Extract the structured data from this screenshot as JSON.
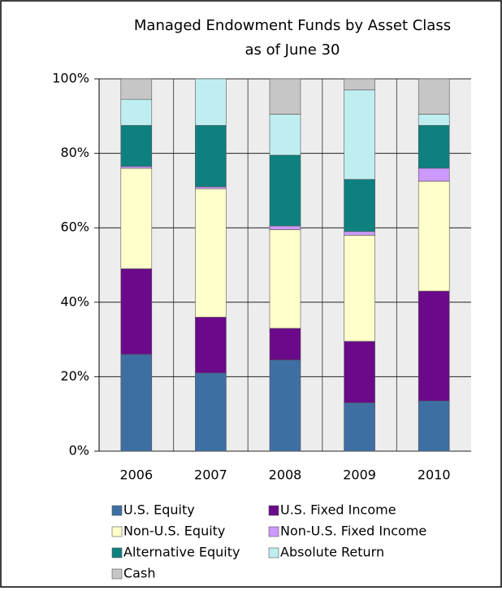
{
  "chart_data": {
    "type": "stacked-bar",
    "title": "Managed Endowment Funds by Asset Class",
    "subtitle": "as of June 30",
    "categories": [
      "2006",
      "2007",
      "2008",
      "2009",
      "2010"
    ],
    "ylim": [
      0,
      100
    ],
    "yticks": [
      {
        "value": 0,
        "label": "0%"
      },
      {
        "value": 20,
        "label": "20%"
      },
      {
        "value": 40,
        "label": "40%"
      },
      {
        "value": 60,
        "label": "60%"
      },
      {
        "value": 80,
        "label": "80%"
      },
      {
        "value": 100,
        "label": "100%"
      }
    ],
    "grid": true,
    "series": [
      {
        "name": "U.S. Equity",
        "color": "#3e6fa3",
        "values": [
          26,
          21,
          24.5,
          13,
          13.5
        ]
      },
      {
        "name": "U.S. Fixed Income",
        "color": "#6a0a8a",
        "values": [
          23,
          15,
          8.5,
          16.5,
          29.5
        ]
      },
      {
        "name": "Non-U.S. Equity",
        "color": "#ffffcc",
        "values": [
          27,
          34.5,
          26.5,
          28.5,
          29.5
        ]
      },
      {
        "name": "Non-U.S. Fixed Income",
        "color": "#cc99ff",
        "values": [
          0.5,
          0.5,
          1,
          1,
          3.5
        ]
      },
      {
        "name": "Alternative Equity",
        "color": "#0e8080",
        "values": [
          11,
          16.5,
          19,
          14,
          11.5
        ]
      },
      {
        "name": "Absolute Return",
        "color": "#bfeef0",
        "values": [
          7,
          12.5,
          11,
          24,
          3
        ]
      },
      {
        "name": "Cash",
        "color": "#c6c6c6",
        "values": [
          5.5,
          0,
          9.5,
          3,
          9.5
        ]
      }
    ]
  }
}
